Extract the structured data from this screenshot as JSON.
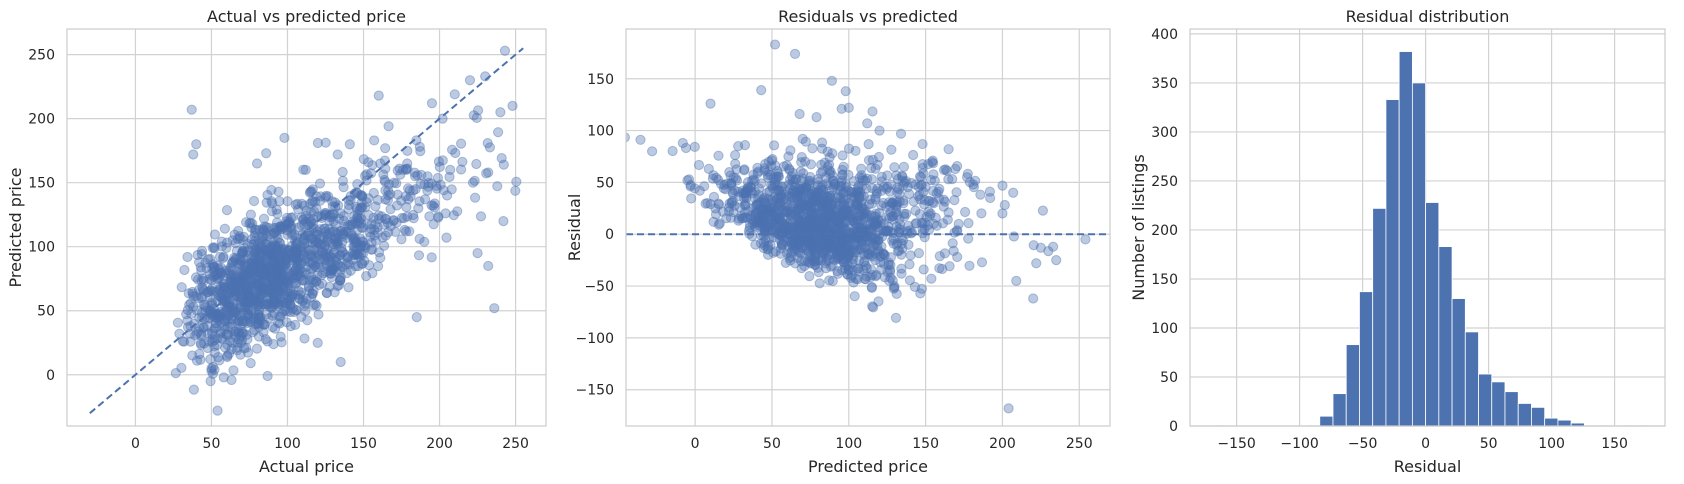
{
  "chart_data": [
    {
      "type": "scatter",
      "title": "Actual vs predicted price",
      "xlabel": "Actual price",
      "ylabel": "Predicted price",
      "xlim": [
        -45,
        270
      ],
      "ylim": [
        -40,
        270
      ],
      "xticks": [
        0,
        50,
        100,
        150,
        200,
        250
      ],
      "yticks": [
        0,
        50,
        100,
        150,
        200,
        250
      ],
      "grid": true,
      "reference_line": {
        "style": "dashed",
        "from": [
          -30,
          -30
        ],
        "to": [
          255,
          255
        ]
      },
      "color": "#4c72b0",
      "n_points": 1450,
      "series": [
        {
          "x": [
            37,
            40,
            38,
            80,
            50,
            50,
            51,
            52,
            54,
            135,
            185,
            160,
            248,
            240,
            230,
            220,
            210,
            243,
            236,
            195,
            176,
            157,
            120,
            133,
            141,
            187,
            202,
            232,
            242,
            232,
            222,
            186,
            225,
            205,
            178,
            146,
            161,
            170,
            112,
            98,
            86
          ],
          "y": [
            207,
            180,
            172,
            165,
            5,
            3,
            6,
            4,
            -28,
            10,
            45,
            218,
            210,
            205,
            233,
            230,
            219,
            253,
            52,
            212,
            160,
            183,
            181,
            172,
            180,
            178,
            200,
            158,
            120,
            85,
            150,
            130,
            95,
            140,
            112,
            118,
            165,
            150,
            160,
            185,
            173
          ]
        }
      ]
    },
    {
      "type": "scatter",
      "title": "Residuals vs predicted",
      "xlabel": "Predicted price",
      "ylabel": "Residual",
      "xlim": [
        -45,
        270
      ],
      "ylim": [
        -185,
        198
      ],
      "xticks": [
        0,
        50,
        100,
        150,
        200,
        250
      ],
      "yticks": [
        -150,
        -100,
        -50,
        0,
        50,
        100,
        150
      ],
      "grid": true,
      "reference_line": {
        "style": "dashed",
        "y": 0
      },
      "color": "#4c72b0",
      "n_points": 1450,
      "series": [
        {
          "x": [
            -28,
            -5,
            -4,
            -3,
            10,
            -8,
            3,
            12,
            8,
            22,
            28,
            33,
            43,
            48,
            52,
            65,
            68,
            70,
            79,
            89,
            98,
            100,
            112,
            120,
            134,
            148,
            162,
            177,
            181,
            192,
            200,
            207,
            204,
            209,
            220,
            225,
            222,
            233,
            235,
            254
          ],
          "y": [
            80,
            52,
            53,
            46,
            126,
            88,
            42,
            12,
            30,
            22,
            85,
            40,
            139,
            70,
            183,
            174,
            116,
            92,
            113,
            148,
            138,
            122,
            107,
            100,
            97,
            87,
            62,
            55,
            48,
            35,
            20,
            40,
            -168,
            -45,
            -62,
            -13,
            -28,
            -12,
            -25,
            -5
          ]
        }
      ]
    },
    {
      "type": "bar",
      "title": "Residual distribution",
      "xlabel": "Residual",
      "ylabel": "Number of listings",
      "xlim": [
        -187,
        190
      ],
      "ylim": [
        0,
        405
      ],
      "xticks": [
        -150,
        -100,
        -50,
        0,
        50,
        100,
        150
      ],
      "yticks": [
        0,
        50,
        100,
        150,
        200,
        250,
        300,
        350,
        400
      ],
      "grid": true,
      "bin_width": 10.5,
      "bin_starts": [
        -168,
        -157.5,
        -147,
        -136.5,
        -126,
        -115.5,
        -105,
        -94.5,
        -84,
        -73.5,
        -63,
        -52.5,
        -42,
        -31.5,
        -21,
        -10.5,
        0,
        10.5,
        21,
        31.5,
        42,
        52.5,
        63,
        73.5,
        84,
        94.5,
        105,
        115.5,
        126,
        136.5,
        147,
        157.5,
        168,
        178.5
      ],
      "values": [
        1,
        0,
        0,
        0,
        0,
        0,
        0,
        1,
        10,
        33,
        83,
        137,
        222,
        333,
        382,
        350,
        228,
        183,
        130,
        96,
        53,
        45,
        35,
        23,
        19,
        8,
        6,
        3,
        1,
        1,
        0,
        1,
        1,
        0
      ],
      "color": "#4c72b0"
    }
  ]
}
